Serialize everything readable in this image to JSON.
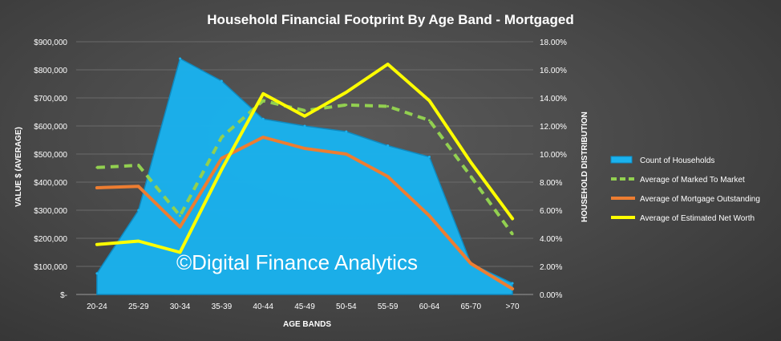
{
  "chart_data": {
    "type": "area+line",
    "title": "Household Financial Footprint By Age Band - Mortgaged",
    "xlabel": "AGE BANDS",
    "ylabel": "VALUE $ (AVERAGE)",
    "y2label": "HOUSEHOLD DISTRIBUTION",
    "categories": [
      "20-24",
      "25-29",
      "30-34",
      "35-39",
      "40-44",
      "45-49",
      "50-54",
      "55-59",
      "60-64",
      "65-70",
      ">70"
    ],
    "ylim": [
      0,
      900000
    ],
    "y_ticks": [
      "$-",
      "$100,000",
      "$200,000",
      "$300,000",
      "$400,000",
      "$500,000",
      "$600,000",
      "$700,000",
      "$800,000",
      "$900,000"
    ],
    "y2lim": [
      0,
      0.18
    ],
    "y2_ticks": [
      "0.00%",
      "2.00%",
      "4.00%",
      "6.00%",
      "8.00%",
      "10.00%",
      "12.00%",
      "14.00%",
      "16.00%",
      "18.00%"
    ],
    "legend_position": "right",
    "series": [
      {
        "name": "Count of Households",
        "type": "area",
        "axis": "secondary",
        "color": "#1ab2ee",
        "values": [
          0.015,
          0.06,
          0.168,
          0.152,
          0.125,
          0.12,
          0.116,
          0.106,
          0.098,
          0.022,
          0.008
        ]
      },
      {
        "name": "Average of Marked To Market",
        "type": "line",
        "style": "dashed",
        "axis": "primary",
        "color": "#92d050",
        "values": [
          452000,
          460000,
          280000,
          560000,
          690000,
          655000,
          675000,
          670000,
          620000,
          420000,
          215000
        ]
      },
      {
        "name": "Average of Mortgage Outstanding",
        "type": "line",
        "axis": "primary",
        "color": "#ed7d31",
        "values": [
          380000,
          385000,
          240000,
          485000,
          560000,
          520000,
          500000,
          420000,
          280000,
          110000,
          20000
        ]
      },
      {
        "name": "Average of Estimated Net Worth",
        "type": "line",
        "axis": "primary",
        "color": "#ffff00",
        "values": [
          178000,
          190000,
          150000,
          445000,
          715000,
          635000,
          720000,
          820000,
          690000,
          470000,
          270000
        ]
      }
    ]
  },
  "watermark": "©Digital Finance Analytics"
}
